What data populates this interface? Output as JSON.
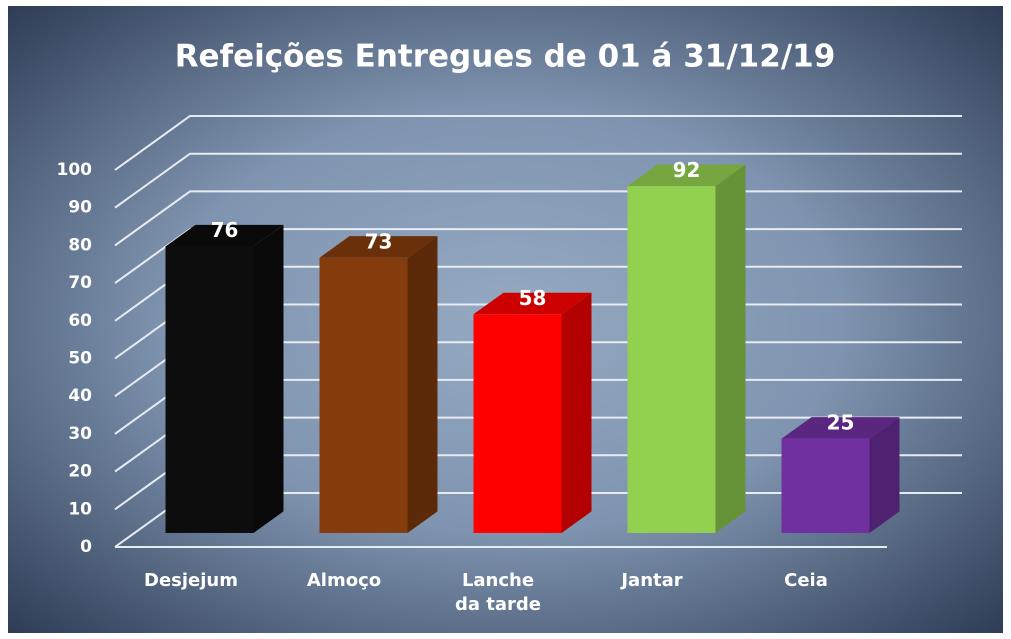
{
  "chart_data": {
    "type": "bar3d",
    "title": "Refeições Entregues de 01 á 31/12/19",
    "categories": [
      "Desjejum",
      "Almoço",
      "Lanche da tarde",
      "Jantar",
      "Ceia"
    ],
    "values": [
      76,
      73,
      58,
      92,
      25
    ],
    "colors": [
      "#0d0d0d",
      "#843c0c",
      "#ff0000",
      "#92d050",
      "#7030a0"
    ],
    "ylim": [
      0,
      100
    ],
    "yticks": [
      0,
      10,
      20,
      30,
      40,
      50,
      60,
      70,
      80,
      90,
      100
    ],
    "grid": true
  }
}
